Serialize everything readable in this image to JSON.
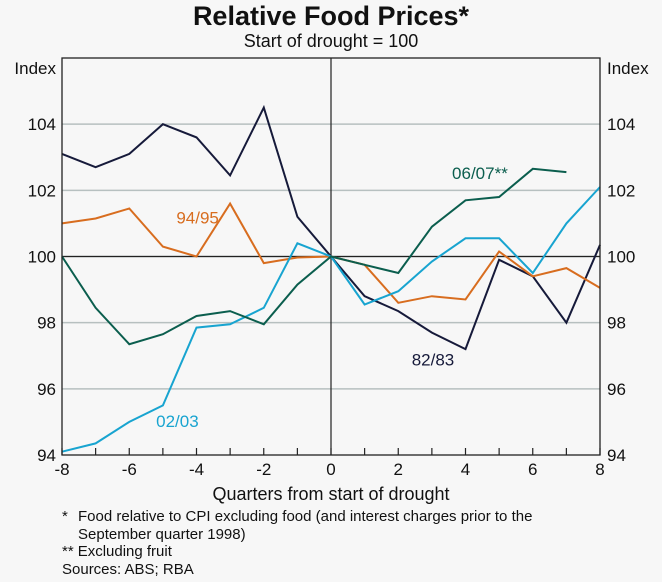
{
  "chart_data": {
    "type": "line",
    "title": "Relative Food Prices*",
    "subtitle": "Start of drought = 100",
    "xlabel": "Quarters from start of drought",
    "ylabel_left": "Index",
    "ylabel_right": "Index",
    "xlim": [
      -8,
      8
    ],
    "ylim": [
      94,
      106
    ],
    "x_ticks": [
      -8,
      -6,
      -4,
      -2,
      0,
      2,
      4,
      6,
      8
    ],
    "x_minor_ticks": [
      -7,
      -5,
      -3,
      -1,
      1,
      3,
      5,
      7
    ],
    "y_ticks": [
      94,
      96,
      98,
      100,
      102,
      104
    ],
    "grid": true,
    "reference_line_y": 100,
    "reference_line_x": 0,
    "series": [
      {
        "name": "82/83",
        "color": "#161a3a",
        "label_pos": {
          "x": 2.4,
          "y": 96.7
        },
        "x": [
          -8,
          -7,
          -6,
          -5,
          -4,
          -3,
          -2,
          -1,
          0,
          1,
          2,
          3,
          4,
          5,
          6,
          7,
          8
        ],
        "values": [
          103.1,
          102.7,
          103.1,
          104.0,
          103.6,
          102.45,
          104.5,
          101.2,
          100.0,
          98.8,
          98.35,
          97.7,
          97.2,
          99.9,
          99.4,
          98.0,
          100.35
        ]
      },
      {
        "name": "94/95",
        "color": "#d86d1f",
        "label_pos": {
          "x": -4.6,
          "y": 101.0
        },
        "x": [
          -8,
          -7,
          -6,
          -5,
          -4,
          -3,
          -2,
          -1,
          0,
          1,
          2,
          3,
          4,
          5,
          6,
          7,
          8
        ],
        "values": [
          101.0,
          101.15,
          101.45,
          100.3,
          100.0,
          101.6,
          99.8,
          99.97,
          100.0,
          99.75,
          98.6,
          98.8,
          98.7,
          100.15,
          99.4,
          99.65,
          99.05
        ]
      },
      {
        "name": "02/03",
        "color": "#18a4d0",
        "label_pos": {
          "x": -5.2,
          "y": 94.85
        },
        "x": [
          -8,
          -7,
          -6,
          -5,
          -4,
          -3,
          -2,
          -1,
          0,
          1,
          2,
          3,
          4,
          5,
          6,
          7,
          8
        ],
        "values": [
          94.1,
          94.35,
          95.0,
          95.5,
          97.85,
          97.95,
          98.45,
          100.4,
          100.0,
          98.55,
          98.95,
          99.85,
          100.55,
          100.55,
          99.5,
          101.0,
          102.1
        ]
      },
      {
        "name": "06/07**",
        "color": "#0b5e4e",
        "label_pos": {
          "x": 3.6,
          "y": 102.35
        },
        "x": [
          -8,
          -7,
          -6,
          -5,
          -4,
          -3,
          -2,
          -1,
          0,
          1,
          2,
          3,
          4,
          5,
          6,
          7
        ],
        "values": [
          100.0,
          98.45,
          97.35,
          97.65,
          98.2,
          98.35,
          97.95,
          99.15,
          100.0,
          99.75,
          99.5,
          100.9,
          101.7,
          101.8,
          102.65,
          102.55
        ]
      }
    ]
  },
  "footnotes": [
    {
      "mark": "*",
      "text": "Food relative to CPI excluding food (and interest charges prior to the"
    },
    {
      "mark": "",
      "text": "September quarter 1998)"
    },
    {
      "mark": "**",
      "text": "Excluding fruit"
    }
  ],
  "sources": "Sources: ABS; RBA"
}
